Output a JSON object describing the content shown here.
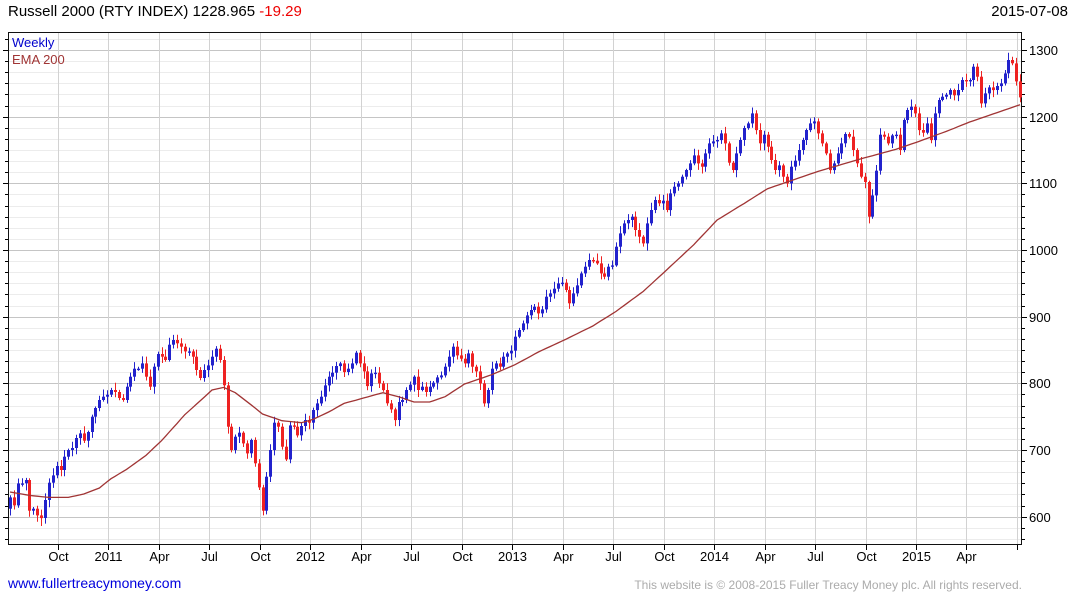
{
  "header": {
    "title": "Russell 2000 (RTY INDEX)",
    "last_price": "1228.965",
    "change": "-19.29",
    "date": "2015-07-08"
  },
  "legend": {
    "series": "Weekly",
    "overlay": "EMA 200"
  },
  "footer": {
    "site": "www.fullertreacymoney.com",
    "copyright": "This website is © 2008-2015 Fuller Treacy Money plc. All rights reserved."
  },
  "colors": {
    "up_candle": "#2222cc",
    "down_candle": "#ee2222",
    "ema_line": "#a03434",
    "change_text": "#ee0000",
    "weekly_label": "#0000cc",
    "link": "#0000dd",
    "copyright_text": "#ababab",
    "grid_major": "#c5c5c5",
    "grid_minor": "#ececec",
    "grid_vertical": "#d2d2d2"
  },
  "chart_data": {
    "type": "candlestick",
    "title": "Russell 2000 (RTY INDEX)",
    "timeframe": "weekly",
    "last_close": 1228.965,
    "change": -19.29,
    "as_of_date": "2015-07-08",
    "start": "2010-07",
    "end": "2015-07-08",
    "x_tick_labels": [
      "Oct",
      "2011",
      "Apr",
      "Jul",
      "Oct",
      "2012",
      "Apr",
      "Jul",
      "Oct",
      "2013",
      "Apr",
      "Jul",
      "Oct",
      "2014",
      "Apr",
      "Jul",
      "Oct",
      "2015",
      "Apr"
    ],
    "y_ticks": [
      600,
      700,
      800,
      900,
      1000,
      1100,
      1200,
      1300
    ],
    "ylim": [
      558,
      1326
    ],
    "grid": "on",
    "legend_position": "top-left",
    "up_color": "#2222cc",
    "down_color": "#ee2222",
    "ema_color": "#a03434",
    "first_open": 612,
    "weekly_closes": [
      629,
      617,
      650,
      650,
      655,
      609,
      612,
      602,
      598,
      625,
      651,
      662,
      676,
      670,
      690,
      700,
      703,
      718,
      725,
      714,
      727,
      750,
      763,
      775,
      780,
      783,
      790,
      787,
      778,
      775,
      795,
      810,
      822,
      822,
      830,
      810,
      795,
      825,
      844,
      840,
      835,
      858,
      865,
      860,
      855,
      848,
      848,
      840,
      820,
      808,
      820,
      827,
      840,
      852,
      835,
      797,
      735,
      700,
      720,
      726,
      710,
      695,
      715,
      680,
      644,
      609,
      660,
      700,
      741,
      735,
      705,
      686,
      737,
      735,
      722,
      736,
      745,
      741,
      760,
      770,
      780,
      797,
      810,
      816,
      826,
      830,
      817,
      822,
      830,
      846,
      830,
      818,
      796,
      815,
      816,
      800,
      790,
      770,
      761,
      745,
      772,
      775,
      790,
      798,
      810,
      790,
      795,
      787,
      795,
      801,
      809,
      812,
      825,
      840,
      855,
      842,
      837,
      830,
      845,
      825,
      818,
      800,
      770,
      790,
      822,
      830,
      825,
      840,
      845,
      849,
      870,
      880,
      890,
      902,
      910,
      915,
      905,
      911,
      930,
      935,
      942,
      950,
      951,
      940,
      920,
      935,
      947,
      965,
      975,
      985,
      984,
      980,
      965,
      960,
      975,
      977,
      1005,
      1025,
      1040,
      1045,
      1050,
      1030,
      1020,
      1010,
      1040,
      1060,
      1075,
      1070,
      1074,
      1060,
      1085,
      1095,
      1100,
      1110,
      1120,
      1130,
      1142,
      1130,
      1125,
      1145,
      1160,
      1163,
      1165,
      1175,
      1160,
      1131,
      1120,
      1145,
      1165,
      1183,
      1190,
      1205,
      1180,
      1160,
      1173,
      1155,
      1135,
      1120,
      1127,
      1110,
      1100,
      1125,
      1134,
      1150,
      1165,
      1180,
      1190,
      1193,
      1175,
      1160,
      1145,
      1120,
      1130,
      1145,
      1160,
      1174,
      1170,
      1150,
      1130,
      1110,
      1102,
      1050,
      1082,
      1119,
      1173,
      1170,
      1160,
      1172,
      1173,
      1150,
      1195,
      1210,
      1215,
      1205,
      1180,
      1176,
      1190,
      1165,
      1205,
      1225,
      1230,
      1233,
      1240,
      1232,
      1240,
      1255,
      1253,
      1255,
      1275,
      1260,
      1220,
      1235,
      1244,
      1240,
      1246,
      1250,
      1265,
      1285,
      1280,
      1253,
      1228.965
    ],
    "overrides": {
      "8": {
        "low": 586
      },
      "65": {
        "low": 602
      },
      "221": {
        "low": 1040
      },
      "257": {
        "high": 1296
      }
    },
    "ema200": [
      [
        0,
        637
      ],
      [
        5,
        632
      ],
      [
        10,
        629
      ],
      [
        15,
        629
      ],
      [
        19,
        634
      ],
      [
        23,
        643
      ],
      [
        26,
        657
      ],
      [
        30,
        671
      ],
      [
        35,
        692
      ],
      [
        39,
        714
      ],
      [
        45,
        753
      ],
      [
        52,
        790
      ],
      [
        55,
        794
      ],
      [
        58,
        786
      ],
      [
        62,
        768
      ],
      [
        65,
        754
      ],
      [
        70,
        744
      ],
      [
        75,
        741
      ],
      [
        78,
        746
      ],
      [
        82,
        757
      ],
      [
        86,
        770
      ],
      [
        91,
        778
      ],
      [
        96,
        786
      ],
      [
        100,
        780
      ],
      [
        104,
        772
      ],
      [
        108,
        772
      ],
      [
        112,
        780
      ],
      [
        117,
        799
      ],
      [
        124,
        813
      ],
      [
        130,
        828
      ],
      [
        136,
        847
      ],
      [
        143,
        866
      ],
      [
        150,
        886
      ],
      [
        156,
        908
      ],
      [
        163,
        938
      ],
      [
        169,
        970
      ],
      [
        176,
        1008
      ],
      [
        182,
        1045
      ],
      [
        189,
        1070
      ],
      [
        195,
        1092
      ],
      [
        202,
        1106
      ],
      [
        208,
        1118
      ],
      [
        215,
        1130
      ],
      [
        221,
        1140
      ],
      [
        228,
        1151
      ],
      [
        234,
        1163
      ],
      [
        241,
        1178
      ],
      [
        247,
        1192
      ],
      [
        254,
        1206
      ],
      [
        260,
        1218
      ]
    ]
  }
}
